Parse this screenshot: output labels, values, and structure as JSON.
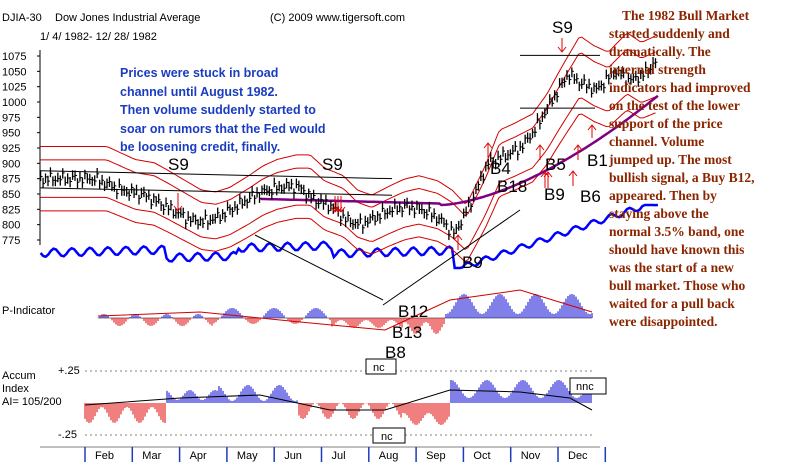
{
  "header": {
    "ticker": "DJIA-30",
    "name": "Dow Jones Industrial Average",
    "copyright": "(C) 2009 www.tigersoft.com",
    "date_range": "1/ 4/ 1982- 12/ 28/ 1982"
  },
  "annotation_blue": [
    "Prices were stuck in broad",
    "channel until August 1982.",
    "Then volume suddenly started to",
    "soar on rumors that the Fed would",
    "be loosening credit, finally."
  ],
  "commentary": [
    "The 1982 Bull Market",
    "started suddenly and",
    "dramatically.  The",
    "internal strength",
    "indicators had improved",
    "on the test of the lower",
    "support of the price",
    "channel.  Volume",
    "jumped up.  The most",
    "bullish signal, a Buy B12,",
    "appeared.  Then by",
    "staying above the",
    "normal 3.5% band, one",
    "should have known this",
    "was the start of a new",
    "bull market.  Those who",
    "waited for a pull back",
    "were disappointed."
  ],
  "signals": [
    "S9",
    "S9",
    "S9",
    "B4",
    "B18",
    "B5",
    "B9",
    "B1",
    "B6",
    "B9",
    "B12",
    "B13",
    "B8"
  ],
  "panels": {
    "p_indicator_label": "P-Indicator",
    "accum_label": [
      "Accum",
      "Index",
      "AI= 105/200"
    ],
    "accum_plus": "+.25",
    "accum_minus": "-.25",
    "nc_p": "nc",
    "nc_accum": "nc",
    "nnc_accum": "nnc"
  },
  "colors": {
    "price_bars": "#000000",
    "bands": "#d40000",
    "ma_200": "#800080",
    "relative_strength": "#0000ff",
    "positive_hist": "#0000d0",
    "negative_hist": "#e00000",
    "commentary_text": "#8b2500",
    "annotation_text": "#1a3cc0",
    "signals": "#000000"
  },
  "chart_data": {
    "type": "line",
    "title": "Dow Jones Industrial Average",
    "subtitle": "1/ 4/ 1982- 12/ 28/ 1982",
    "xlabel": "",
    "ylabel": "",
    "ylim": [
      775,
      1075
    ],
    "y_ticks": [
      1075,
      1050,
      1025,
      1000,
      975,
      950,
      925,
      900,
      875,
      850,
      825,
      800,
      775
    ],
    "month_labels": [
      "Feb",
      "Mar",
      "Apr",
      "May",
      "Jun",
      "Jul",
      "Aug",
      "Sep",
      "Oct",
      "Nov",
      "Dec"
    ],
    "series": [
      {
        "type": "ohlc",
        "x_month": [
          0.0,
          0.3,
          0.6,
          1.0,
          1.3,
          1.6,
          2.0,
          2.3,
          2.6,
          3.0,
          3.3,
          3.6,
          4.0,
          4.3,
          4.6,
          5.0,
          5.3,
          5.6,
          6.0,
          6.3,
          6.6,
          7.0,
          7.3,
          7.6,
          8.0,
          8.3,
          8.6,
          9.0,
          9.3,
          9.6,
          10.0,
          10.3,
          10.6,
          11.0,
          11.3,
          11.6,
          11.9
        ],
        "close": [
          875,
          865,
          855,
          850,
          838,
          825,
          808,
          805,
          812,
          830,
          845,
          855,
          862,
          862,
          842,
          830,
          808,
          800,
          815,
          825,
          830,
          822,
          808,
          785,
          845,
          900,
          910,
          925,
          955,
          995,
          1045,
          1030,
          1020,
          1050,
          1035,
          1045,
          1070
        ]
      }
    ]
  }
}
